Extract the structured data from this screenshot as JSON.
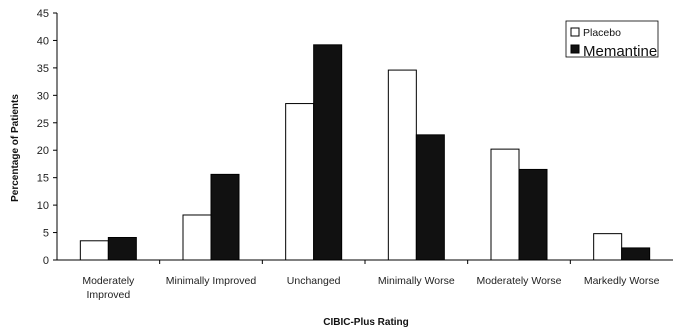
{
  "chart_data": {
    "type": "bar",
    "categories": [
      [
        "Moderately",
        "Improved"
      ],
      [
        "Minimally Improved"
      ],
      [
        "Unchanged"
      ],
      [
        "Minimally Worse"
      ],
      [
        "Moderately Worse"
      ],
      [
        "Markedly Worse"
      ]
    ],
    "series": [
      {
        "name": "Placebo",
        "color": "#ffffff",
        "values": [
          3.5,
          8.2,
          28.5,
          34.6,
          20.2,
          4.8
        ]
      },
      {
        "name": "Memantine",
        "color": "#111111",
        "values": [
          4.1,
          15.6,
          39.2,
          22.8,
          16.5,
          2.2
        ]
      }
    ],
    "xlabel": "CIBIC-Plus Rating",
    "ylabel": "Percentage of Patients",
    "ylim": [
      0,
      45
    ],
    "yticks": [
      0,
      5,
      10,
      15,
      20,
      25,
      30,
      35,
      40,
      45
    ],
    "legend_position": "top-right",
    "grid": false
  }
}
